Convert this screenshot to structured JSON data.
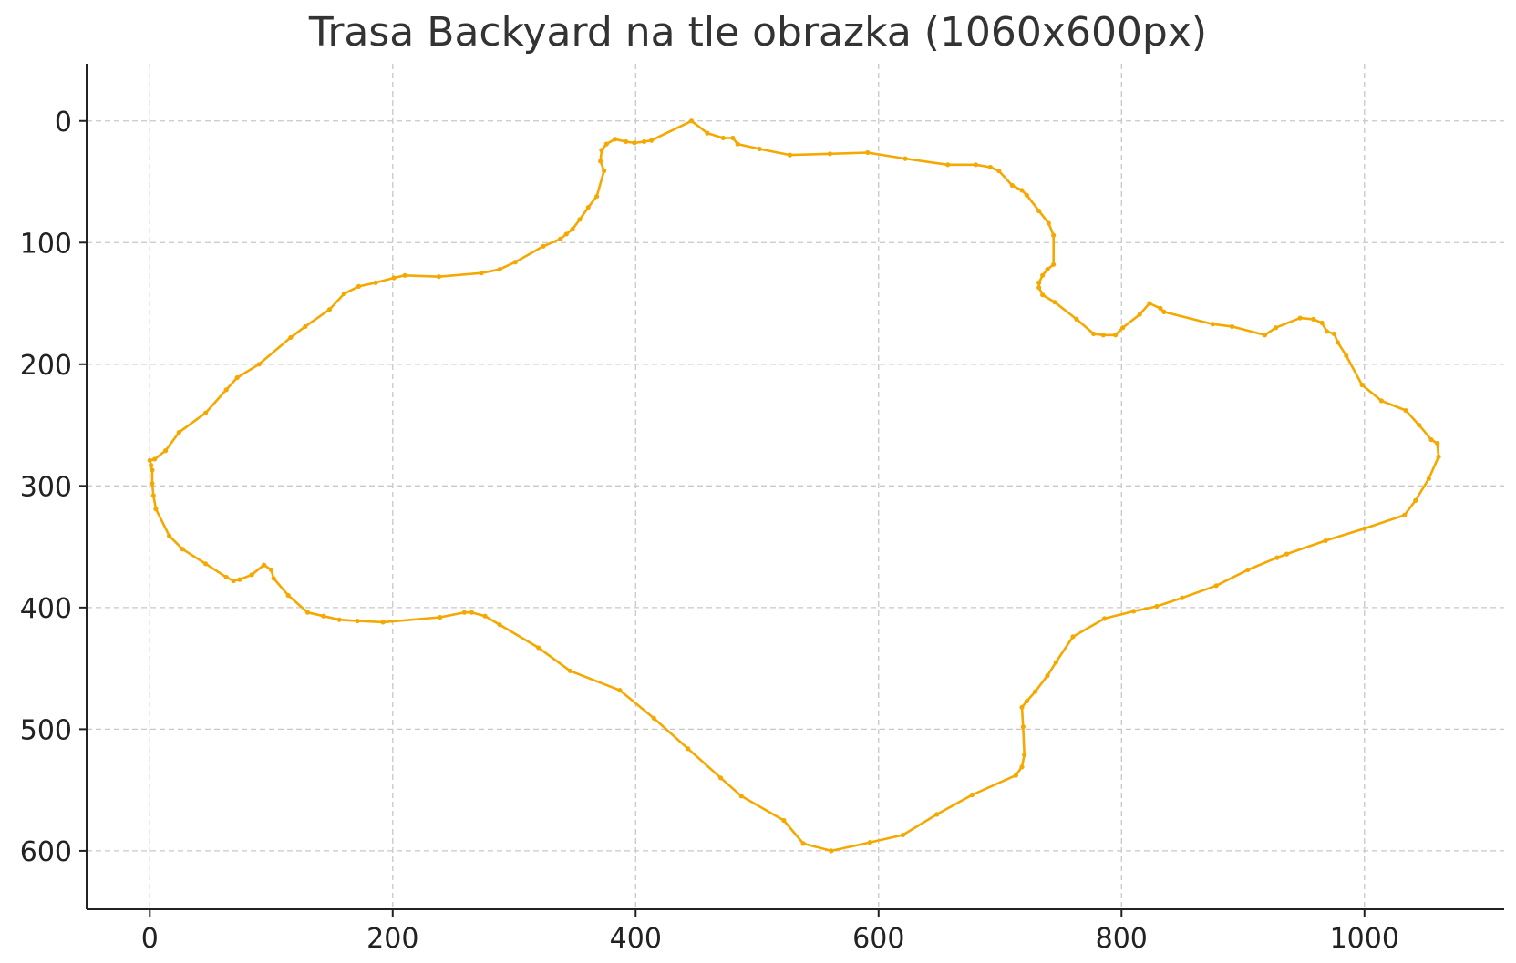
{
  "chart_data": {
    "type": "line",
    "title": "Trasa Backyard na tle obrazka (1060x600px)",
    "xlabel": "",
    "ylabel": "",
    "xlim": [
      -52,
      1115
    ],
    "ylim": [
      648,
      -47
    ],
    "y_inverted": true,
    "grid": true,
    "x_ticks": [
      0,
      200,
      400,
      600,
      800,
      1000
    ],
    "y_ticks": [
      0,
      100,
      200,
      300,
      400,
      500,
      600
    ],
    "series": [
      {
        "color": "#f5a800",
        "marker": "dot",
        "closed": true,
        "points": [
          [
            446,
            0
          ],
          [
            459,
            10
          ],
          [
            472,
            14
          ],
          [
            480,
            14
          ],
          [
            484,
            19
          ],
          [
            502,
            23
          ],
          [
            527,
            28
          ],
          [
            560,
            27
          ],
          [
            591,
            26
          ],
          [
            622,
            31
          ],
          [
            657,
            36
          ],
          [
            680,
            36
          ],
          [
            692,
            38
          ],
          [
            699,
            41
          ],
          [
            710,
            53
          ],
          [
            718,
            57
          ],
          [
            722,
            61
          ],
          [
            732,
            74
          ],
          [
            740,
            84
          ],
          [
            744,
            94
          ],
          [
            744,
            118
          ],
          [
            739,
            122
          ],
          [
            735,
            127
          ],
          [
            732,
            133
          ],
          [
            732,
            137
          ],
          [
            735,
            143
          ],
          [
            745,
            149
          ],
          [
            763,
            163
          ],
          [
            777,
            175
          ],
          [
            785,
            176
          ],
          [
            795,
            176
          ],
          [
            801,
            170
          ],
          [
            815,
            159
          ],
          [
            823,
            150
          ],
          [
            832,
            154
          ],
          [
            835,
            157
          ],
          [
            875,
            167
          ],
          [
            891,
            169
          ],
          [
            918,
            176
          ],
          [
            927,
            170
          ],
          [
            947,
            162
          ],
          [
            958,
            163
          ],
          [
            965,
            166
          ],
          [
            969,
            173
          ],
          [
            975,
            175
          ],
          [
            978,
            182
          ],
          [
            985,
            193
          ],
          [
            998,
            217
          ],
          [
            1014,
            230
          ],
          [
            1034,
            238
          ],
          [
            1045,
            250
          ],
          [
            1055,
            262
          ],
          [
            1060,
            265
          ],
          [
            1061,
            276
          ],
          [
            1053,
            294
          ],
          [
            1042,
            312
          ],
          [
            1033,
            324
          ],
          [
            1000,
            335
          ],
          [
            968,
            345
          ],
          [
            936,
            356
          ],
          [
            928,
            359
          ],
          [
            904,
            369
          ],
          [
            878,
            382
          ],
          [
            850,
            392
          ],
          [
            829,
            399
          ],
          [
            810,
            403
          ],
          [
            786,
            409
          ],
          [
            760,
            424
          ],
          [
            746,
            445
          ],
          [
            739,
            456
          ],
          [
            729,
            469
          ],
          [
            722,
            477
          ],
          [
            718,
            482
          ],
          [
            719,
            498
          ],
          [
            720,
            521
          ],
          [
            718,
            531
          ],
          [
            713,
            538
          ],
          [
            677,
            554
          ],
          [
            648,
            570
          ],
          [
            620,
            587
          ],
          [
            593,
            593
          ],
          [
            561,
            600
          ],
          [
            538,
            594
          ],
          [
            522,
            575
          ],
          [
            487,
            555
          ],
          [
            470,
            540
          ],
          [
            443,
            516
          ],
          [
            415,
            491
          ],
          [
            387,
            468
          ],
          [
            346,
            452
          ],
          [
            320,
            433
          ],
          [
            288,
            414
          ],
          [
            276,
            407
          ],
          [
            265,
            404
          ],
          [
            259,
            404
          ],
          [
            239,
            408
          ],
          [
            192,
            412
          ],
          [
            171,
            411
          ],
          [
            156,
            410
          ],
          [
            143,
            407
          ],
          [
            130,
            404
          ],
          [
            114,
            390
          ],
          [
            102,
            376
          ],
          [
            100,
            369
          ],
          [
            94,
            365
          ],
          [
            84,
            373
          ],
          [
            74,
            377
          ],
          [
            69,
            378
          ],
          [
            63,
            375
          ],
          [
            46,
            364
          ],
          [
            27,
            352
          ],
          [
            16,
            341
          ],
          [
            5,
            319
          ],
          [
            3,
            308
          ],
          [
            2,
            298
          ],
          [
            2,
            287
          ],
          [
            1,
            283
          ],
          [
            0,
            279
          ],
          [
            4,
            278
          ],
          [
            13,
            271
          ],
          [
            24,
            256
          ],
          [
            46,
            240
          ],
          [
            63,
            221
          ],
          [
            72,
            211
          ],
          [
            90,
            200
          ],
          [
            116,
            178
          ],
          [
            128,
            169
          ],
          [
            148,
            155
          ],
          [
            160,
            142
          ],
          [
            172,
            136
          ],
          [
            186,
            133
          ],
          [
            201,
            129
          ],
          [
            210,
            127
          ],
          [
            238,
            128
          ],
          [
            273,
            125
          ],
          [
            288,
            122
          ],
          [
            301,
            116
          ],
          [
            324,
            103
          ],
          [
            338,
            97
          ],
          [
            343,
            93
          ],
          [
            348,
            89
          ],
          [
            354,
            81
          ],
          [
            361,
            71
          ],
          [
            368,
            62
          ],
          [
            374,
            41
          ],
          [
            371,
            33
          ],
          [
            372,
            24
          ],
          [
            376,
            19
          ],
          [
            383,
            15
          ],
          [
            392,
            17
          ],
          [
            399,
            18
          ],
          [
            407,
            17
          ],
          [
            413,
            16
          ]
        ]
      }
    ]
  }
}
